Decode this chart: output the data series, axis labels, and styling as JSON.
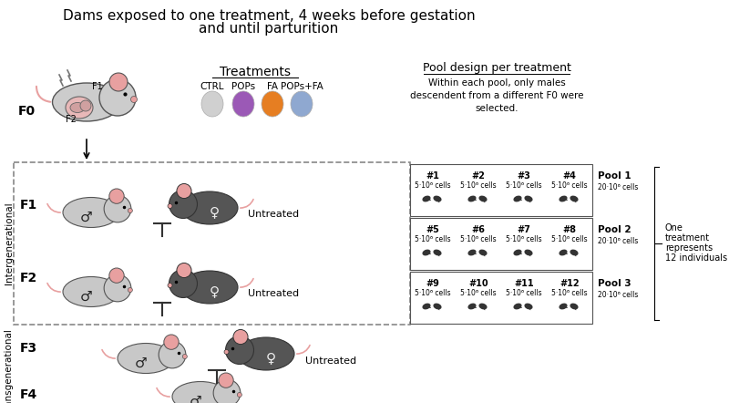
{
  "title_line1": "Dams exposed to one treatment, 4 weeks before gestation",
  "title_line2": "and until parturition",
  "treatments_title": "Treatments",
  "treatment_labels": [
    "CTRL",
    "POPs",
    "FA",
    "POPs+FA"
  ],
  "treatment_colors": [
    "#d0d0d0",
    "#9b59b6",
    "#e67e22",
    "#8fa8d0"
  ],
  "pool_title": "Pool design per treatment",
  "pool_subtitle": "Within each pool, only males\ndescendent from a different F0 were\nselected.",
  "pool_rows": [
    {
      "ids": [
        "#1",
        "#2",
        "#3",
        "#4"
      ],
      "pool_label": "Pool 1",
      "pool_cells": "20·10⁶ cells"
    },
    {
      "ids": [
        "#5",
        "#6",
        "#7",
        "#8"
      ],
      "pool_label": "Pool 2",
      "pool_cells": "20·10⁶ cells"
    },
    {
      "ids": [
        "#9",
        "#10",
        "#11",
        "#12"
      ],
      "pool_label": "Pool 3",
      "pool_cells": "20·10⁶ cells"
    }
  ],
  "individual_cells": "5·10⁶ cells",
  "one_treatment_text": [
    "One",
    "treatment",
    "represents",
    "12 individuals"
  ],
  "generations": [
    "F0",
    "F1",
    "F2",
    "F3",
    "F4"
  ],
  "intergenerational_label": "Intergenerational",
  "transgenerational_label": "Transgenerational",
  "untreated_label": "Untreated",
  "bg_color": "#ffffff",
  "mouse_light_gray": "#c8c8c8",
  "mouse_dark_gray": "#555555",
  "mouse_pink": "#e8a0a0",
  "dashed_box_color": "#888888",
  "arrow_color": "#333333",
  "text_color": "#000000",
  "f_label_fontsize": 10,
  "title_fontsize": 11,
  "pool_fontsize": 8,
  "side_label_fontsize": 8
}
